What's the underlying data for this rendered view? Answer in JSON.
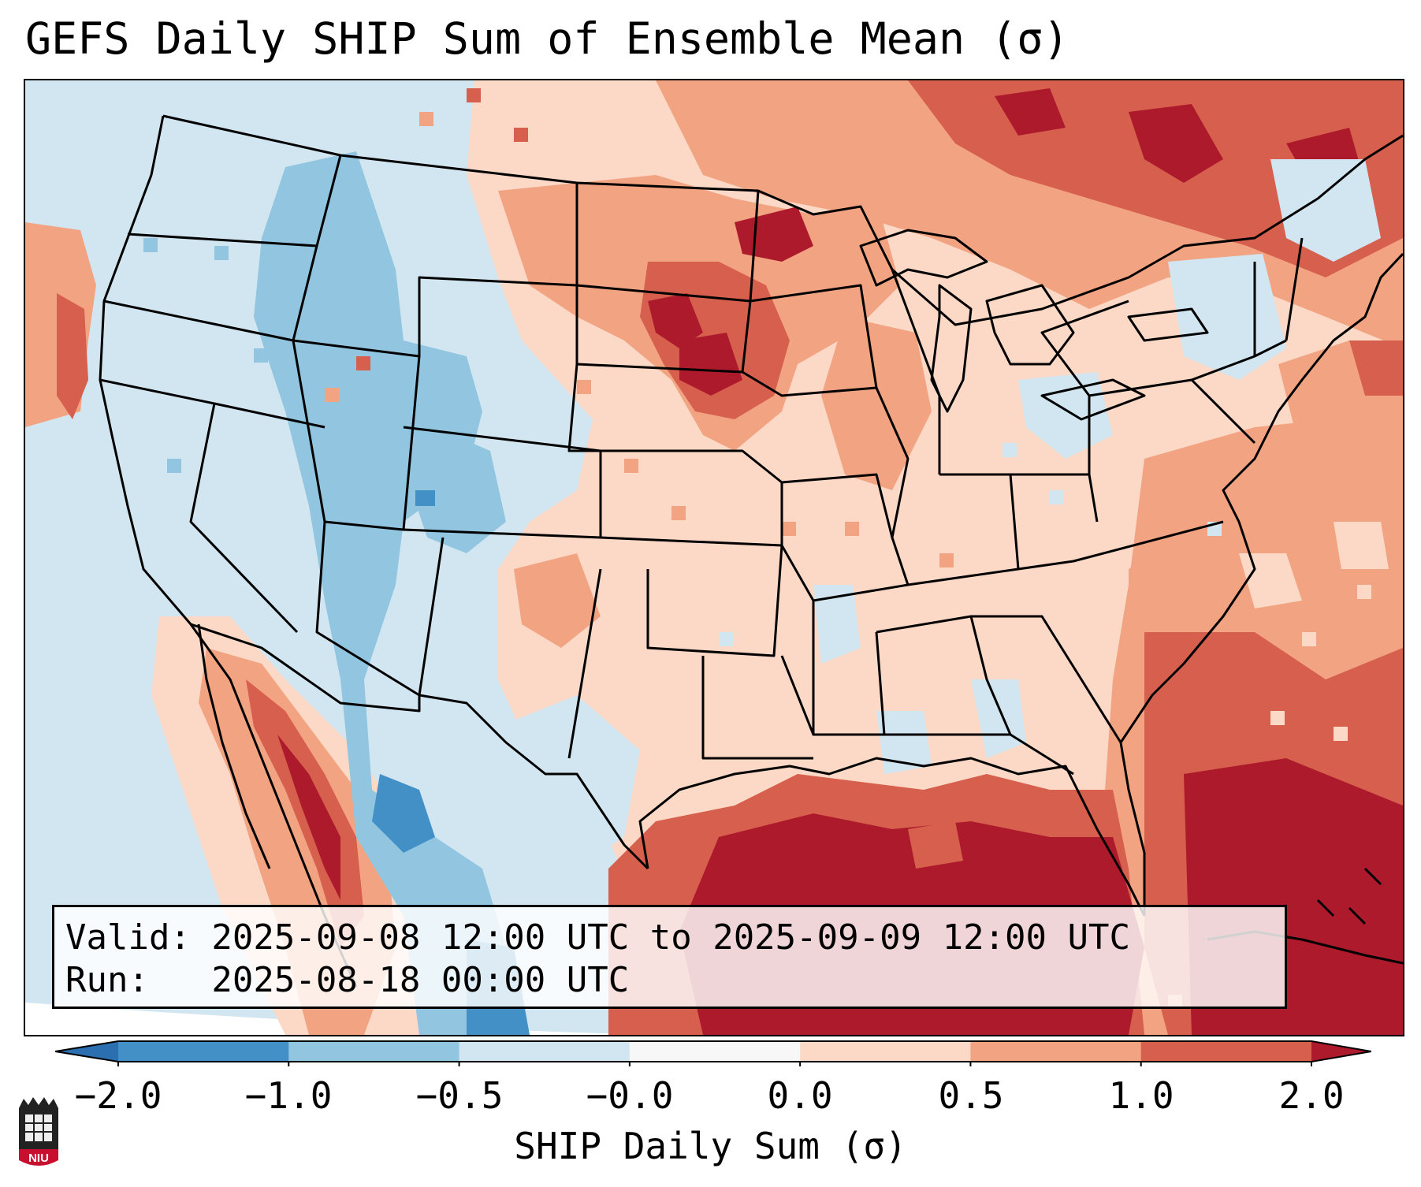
{
  "title": "GEFS Daily SHIP Sum of Ensemble Mean (σ)",
  "info": {
    "valid_line": "Valid: 2025-09-08 12:00 UTC to 2025-09-09 12:00 UTC",
    "run_line": "Run:   2025-08-18 00:00 UTC"
  },
  "colorbar": {
    "label": "SHIP Daily Sum (σ)",
    "ticks": [
      "−2.0",
      "−1.0",
      "−0.5",
      "−0.0",
      "0.0",
      "0.5",
      "1.0",
      "2.0"
    ],
    "under_color": "#2b6fb0",
    "over_color": "#ad1a2b",
    "bins": [
      {
        "range": "-2.0 to -1.0",
        "color": "#4390c6"
      },
      {
        "range": "-1.0 to -0.5",
        "color": "#92c5e0"
      },
      {
        "range": "-0.5 to -0.0",
        "color": "#d2e6f1"
      },
      {
        "range": "-0.0 to 0.0",
        "color": "#f7f7f7"
      },
      {
        "range": "0.0 to 0.5",
        "color": "#fbd9c6"
      },
      {
        "range": "0.5 to 1.0",
        "color": "#f2a482"
      },
      {
        "range": "1.0 to 2.0",
        "color": "#d6604d"
      }
    ]
  },
  "map": {
    "region": "Contiguous United States",
    "background_color": "#d2e6f1"
  },
  "logo_text": "NIU"
}
